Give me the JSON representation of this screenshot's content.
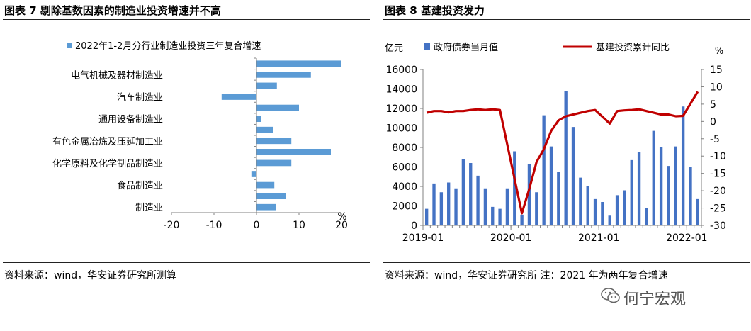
{
  "left_figure": {
    "title": "图表 7  剔除基数因素的制造业投资增速并不高",
    "source": "资料来源：wind，华安证券研究所测算"
  },
  "right_figure": {
    "title": "图表 8  基建投资发力",
    "source": "资料来源：wind，华安证券研究所 注：2021 年为两年复合增速"
  },
  "watermark": {
    "text": "何宁宏观",
    "icon": "wechat-logo-icon"
  },
  "colors": {
    "bar_blue": "#4472C4",
    "bar_light_blue": "#5B9BD5",
    "line_red": "#C00000",
    "axis": "#808080"
  },
  "chart_data": [
    {
      "type": "bar",
      "orientation": "horizontal",
      "title": "",
      "legend": {
        "placement": "top",
        "entries": [
          "2022年1-2月分行业制造业投资三年复合增速"
        ]
      },
      "series": [
        {
          "name": "2022年1-2月分行业制造业投资三年复合增速",
          "values": [
            20.0,
            12.8,
            4.8,
            -8.2,
            10.0,
            1.0,
            4.0,
            8.2,
            17.5,
            8.2,
            -1.2,
            4.2,
            7.0,
            4.5
          ]
        }
      ],
      "category_labels": [
        "电气机械及器材制造业",
        "汽车制造业",
        "通用设备制造业",
        "有色金属冶炼及压延加工业",
        "化学原料及化学制品制造业",
        "食品制造业",
        "制造业"
      ],
      "label_rows": [
        1,
        3,
        5,
        7,
        9,
        11,
        13
      ],
      "xlim": [
        -20,
        20
      ],
      "xticks": [
        "-20",
        "-10",
        "0",
        "10",
        "20"
      ],
      "unit": "%",
      "grid": false
    },
    {
      "type": "bar+line",
      "title": "",
      "legend": {
        "placement": "top",
        "entries": [
          "政府债券当月值",
          "基建投资累计同比"
        ]
      },
      "x": [
        "2019-01",
        "2019-02",
        "2019-03",
        "2019-04",
        "2019-05",
        "2019-06",
        "2019-07",
        "2019-08",
        "2019-09",
        "2019-10",
        "2019-11",
        "2019-12",
        "2020-01",
        "2020-02",
        "2020-03",
        "2020-04",
        "2020-05",
        "2020-06",
        "2020-07",
        "2020-08",
        "2020-09",
        "2020-10",
        "2020-11",
        "2020-12",
        "2021-01",
        "2021-02",
        "2021-03",
        "2021-04",
        "2021-05",
        "2021-06",
        "2021-07",
        "2021-08",
        "2021-09",
        "2021-10",
        "2021-11",
        "2021-12",
        "2022-01",
        "2022-02"
      ],
      "xticks": [
        "2019-01",
        "2020-01",
        "2021-01",
        "2022-01"
      ],
      "series": [
        {
          "name": "政府债券当月值",
          "axis": "left",
          "values": [
            1700,
            4300,
            3400,
            4400,
            3800,
            6800,
            6400,
            5100,
            3800,
            1900,
            1700,
            3800,
            7600,
            1100,
            6300,
            3400,
            11300,
            8100,
            5500,
            13800,
            10100,
            4900,
            4000,
            2700,
            2400,
            1000,
            3100,
            3600,
            6700,
            7500,
            1800,
            9700,
            8000,
            6100,
            8100,
            12200,
            6000,
            2700
          ]
        },
        {
          "name": "基建投资累计同比",
          "axis": "right",
          "values": [
            2.5,
            3.0,
            3.0,
            2.6,
            3.0,
            3.0,
            3.3,
            3.5,
            3.3,
            3.5,
            3.3,
            null,
            null,
            -26.5,
            -19.5,
            -11.7,
            -8.0,
            -2.7,
            0.3,
            1.5,
            2.0,
            2.5,
            3.0,
            3.3,
            null,
            -0.6,
            3.0,
            3.2,
            3.3,
            3.5,
            3.0,
            2.5,
            2.0,
            2.0,
            1.5,
            1.6,
            null,
            8.6
          ]
        }
      ],
      "left_axis": {
        "label": "亿元",
        "ylim": [
          0,
          16000
        ],
        "ticks": [
          "0",
          "2000",
          "4000",
          "6000",
          "8000",
          "10000",
          "12000",
          "14000",
          "16000"
        ]
      },
      "right_axis": {
        "label": "%",
        "ylim": [
          -30,
          15
        ],
        "ticks": [
          "-30",
          "-25",
          "-20",
          "-15",
          "-10",
          "-5",
          "0",
          "5",
          "10",
          "15"
        ]
      },
      "grid": false
    }
  ]
}
